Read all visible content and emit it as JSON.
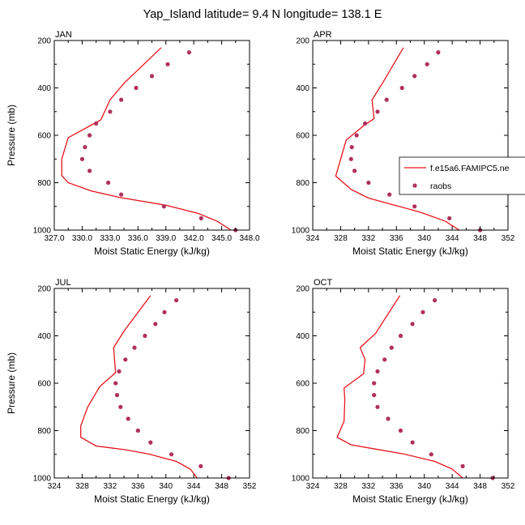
{
  "figure": {
    "title": "Yap_Island  latitude= 9.4 N longitude= 138.1 E",
    "ylabel": "Pressure (mb)",
    "xlabel": "Moist Static Energy (kJ/kg)"
  },
  "legend": {
    "model_label": "f.e15a6.FAMIPC5.ne",
    "obs_label": "raobs",
    "placement": "right, inside APR panel"
  },
  "colors": {
    "model_line": "#e8141c",
    "obs_marker": "#b0305c",
    "axis": "#000000"
  },
  "chart_data": [
    {
      "type": "line",
      "panel_label": "JAN",
      "xlim": [
        327.0,
        348.0
      ],
      "xticks": [
        327.0,
        330.0,
        333.0,
        336.0,
        339.0,
        342.0,
        345.0,
        348.0
      ],
      "xtick_labels": [
        "327.0",
        "330.0",
        "333.0",
        "336.0",
        "339.0",
        "342.0",
        "345.0",
        "348.0"
      ],
      "ylim": [
        1000,
        200
      ],
      "yticks": [
        1000,
        800,
        600,
        400,
        200
      ],
      "series": [
        {
          "name": "f.e15a6.FAMIPC5.ne",
          "points": [
            [
              346.0,
              1000
            ],
            [
              344.5,
              962
            ],
            [
              342.5,
              930
            ],
            [
              339.0,
              895
            ],
            [
              334.0,
              862
            ],
            [
              331.0,
              835
            ],
            [
              328.5,
              800
            ],
            [
              327.8,
              770
            ],
            [
              327.8,
              700
            ],
            [
              328.5,
              610
            ],
            [
              332.0,
              535
            ],
            [
              333.0,
              450
            ],
            [
              334.5,
              380
            ],
            [
              338.5,
              230
            ]
          ]
        },
        {
          "name": "raobs",
          "points": [
            [
              346.5,
              1000
            ],
            [
              342.8,
              950
            ],
            [
              338.8,
              900
            ],
            [
              334.2,
              850
            ],
            [
              332.8,
              800
            ],
            [
              330.8,
              750
            ],
            [
              330.0,
              700
            ],
            [
              330.3,
              650
            ],
            [
              330.8,
              600
            ],
            [
              331.5,
              550
            ],
            [
              333.0,
              500
            ],
            [
              334.2,
              450
            ],
            [
              335.8,
              400
            ],
            [
              337.5,
              350
            ],
            [
              339.2,
              300
            ],
            [
              341.5,
              250
            ]
          ]
        }
      ]
    },
    {
      "type": "line",
      "panel_label": "APR",
      "xlim": [
        324,
        352
      ],
      "xticks": [
        324,
        328,
        332,
        336,
        340,
        344,
        348,
        352
      ],
      "xtick_labels": [
        "324",
        "328",
        "332",
        "336",
        "340",
        "344",
        "348",
        "352"
      ],
      "ylim": [
        1000,
        200
      ],
      "yticks": [
        1000,
        800,
        600,
        400,
        200
      ],
      "series": [
        {
          "name": "f.e15a6.FAMIPC5.ne",
          "points": [
            [
              345.0,
              1000
            ],
            [
              343.0,
              962
            ],
            [
              339.5,
              925
            ],
            [
              335.5,
              893
            ],
            [
              332.0,
              865
            ],
            [
              329.5,
              828
            ],
            [
              327.3,
              772
            ],
            [
              328.8,
              620
            ],
            [
              331.5,
              555
            ],
            [
              332.8,
              530
            ],
            [
              332.5,
              450
            ],
            [
              334.0,
              380
            ],
            [
              337.0,
              230
            ]
          ]
        },
        {
          "name": "raobs",
          "points": [
            [
              348.0,
              1000
            ],
            [
              343.6,
              950
            ],
            [
              338.6,
              900
            ],
            [
              335.0,
              850
            ],
            [
              332.0,
              800
            ],
            [
              330.0,
              750
            ],
            [
              329.5,
              700
            ],
            [
              329.6,
              650
            ],
            [
              330.3,
              600
            ],
            [
              331.5,
              550
            ],
            [
              333.3,
              500
            ],
            [
              334.6,
              450
            ],
            [
              336.8,
              400
            ],
            [
              338.6,
              350
            ],
            [
              340.4,
              300
            ],
            [
              342.0,
              250
            ]
          ]
        }
      ]
    },
    {
      "type": "line",
      "panel_label": "JUL",
      "xlim": [
        324,
        352
      ],
      "xticks": [
        324,
        328,
        332,
        336,
        340,
        344,
        348,
        352
      ],
      "xtick_labels": [
        "324",
        "328",
        "332",
        "336",
        "340",
        "344",
        "348",
        "352"
      ],
      "ylim": [
        1000,
        200
      ],
      "yticks": [
        1000,
        800,
        600,
        400,
        200
      ],
      "series": [
        {
          "name": "f.e15a6.FAMIPC5.ne",
          "points": [
            [
              344.5,
              1000
            ],
            [
              343.5,
              962
            ],
            [
              341.5,
              930
            ],
            [
              337.5,
              898
            ],
            [
              334.0,
              880
            ],
            [
              330.0,
              865
            ],
            [
              327.8,
              828
            ],
            [
              327.8,
              780
            ],
            [
              328.8,
              700
            ],
            [
              330.5,
              615
            ],
            [
              332.8,
              555
            ],
            [
              332.5,
              450
            ],
            [
              334.0,
              380
            ],
            [
              337.8,
              230
            ]
          ]
        },
        {
          "name": "raobs",
          "points": [
            [
              349.0,
              1000
            ],
            [
              345.0,
              950
            ],
            [
              340.8,
              900
            ],
            [
              337.8,
              850
            ],
            [
              336.0,
              800
            ],
            [
              334.6,
              750
            ],
            [
              333.5,
              700
            ],
            [
              333.0,
              650
            ],
            [
              332.8,
              600
            ],
            [
              333.3,
              550
            ],
            [
              334.2,
              500
            ],
            [
              335.5,
              450
            ],
            [
              337.0,
              400
            ],
            [
              338.5,
              350
            ],
            [
              339.8,
              300
            ],
            [
              341.5,
              250
            ]
          ]
        }
      ]
    },
    {
      "type": "line",
      "panel_label": "OCT",
      "xlim": [
        324,
        352
      ],
      "xticks": [
        324,
        328,
        332,
        336,
        340,
        344,
        348,
        352
      ],
      "xtick_labels": [
        "324",
        "328",
        "332",
        "336",
        "340",
        "344",
        "348",
        "352"
      ],
      "ylim": [
        1000,
        200
      ],
      "yticks": [
        1000,
        800,
        600,
        400,
        200
      ],
      "series": [
        {
          "name": "f.e15a6.FAMIPC5.ne",
          "points": [
            [
              345.5,
              1000
            ],
            [
              344.0,
              962
            ],
            [
              341.5,
              930
            ],
            [
              337.0,
              898
            ],
            [
              333.0,
              878
            ],
            [
              329.5,
              860
            ],
            [
              327.5,
              828
            ],
            [
              328.5,
              760
            ],
            [
              328.6,
              670
            ],
            [
              328.5,
              620
            ],
            [
              331.3,
              560
            ],
            [
              331.5,
              500
            ],
            [
              330.8,
              450
            ],
            [
              333.0,
              390
            ],
            [
              336.5,
              230
            ]
          ]
        },
        {
          "name": "raobs",
          "points": [
            [
              349.8,
              1000
            ],
            [
              345.5,
              950
            ],
            [
              341.0,
              900
            ],
            [
              338.3,
              850
            ],
            [
              336.6,
              800
            ],
            [
              334.8,
              750
            ],
            [
              333.3,
              700
            ],
            [
              332.8,
              650
            ],
            [
              332.8,
              600
            ],
            [
              333.3,
              550
            ],
            [
              334.3,
              500
            ],
            [
              335.3,
              450
            ],
            [
              336.6,
              400
            ],
            [
              338.3,
              350
            ],
            [
              339.8,
              300
            ],
            [
              341.5,
              250
            ]
          ]
        }
      ]
    }
  ]
}
